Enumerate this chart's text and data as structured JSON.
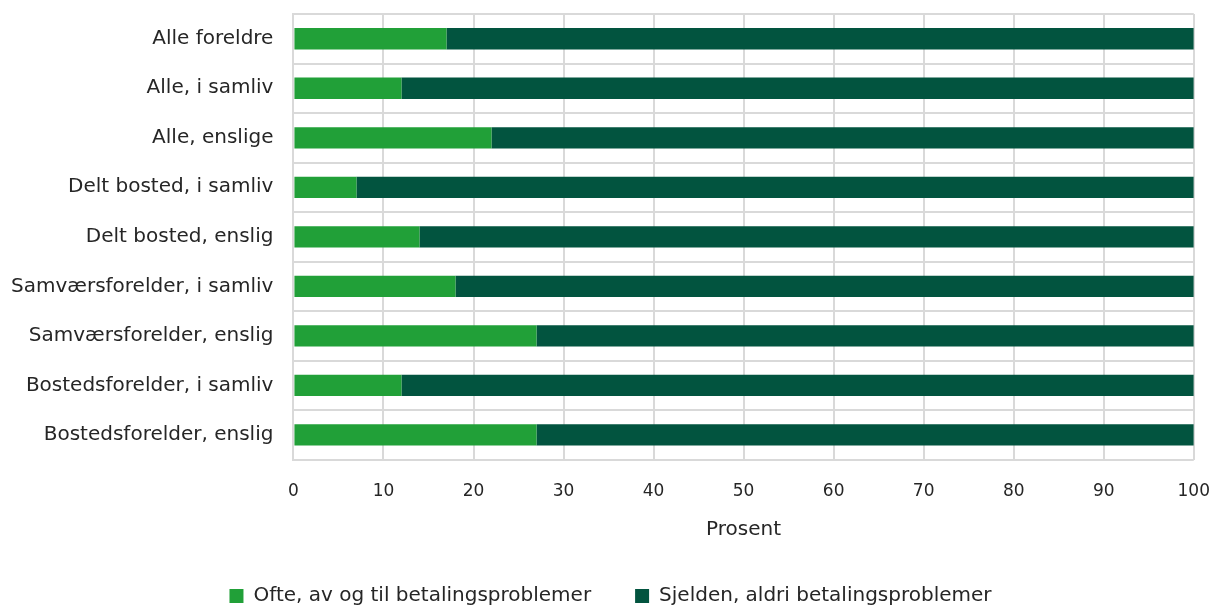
{
  "chart_data": {
    "type": "bar",
    "orientation": "horizontal",
    "stacked": true,
    "categories": [
      "Alle foreldre",
      "Alle, i samliv",
      "Alle, enslige",
      "Delt bosted, i samliv",
      "Delt bosted, enslig",
      "Samværsforelder, i samliv",
      "Samværsforelder, enslig",
      "Bostedsforelder, i samliv",
      "Bostedsforelder, enslig"
    ],
    "series": [
      {
        "name": "Ofte, av og til betalingsproblemer",
        "color": "#21a038",
        "values": [
          17,
          12,
          22,
          7,
          14,
          18,
          27,
          12,
          27
        ]
      },
      {
        "name": "Sjelden, aldri betalingsproblemer",
        "color": "#02543f",
        "values": [
          83,
          88,
          78,
          93,
          86,
          82,
          73,
          88,
          73
        ]
      }
    ],
    "xlim": [
      0,
      100
    ],
    "xticks": [
      0,
      10,
      20,
      30,
      40,
      50,
      60,
      70,
      80,
      90,
      100
    ],
    "xlabel": "Prosent",
    "grid": true,
    "legend": "bottom"
  }
}
